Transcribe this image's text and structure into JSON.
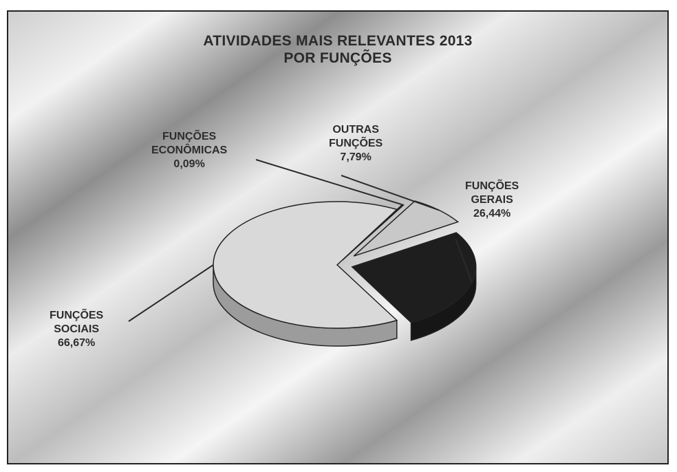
{
  "chart_data": {
    "type": "pie",
    "title": [
      "ATIVIDADES MAIS RELEVANTES 2013",
      "POR FUNÇÕES"
    ],
    "slices": [
      {
        "label": [
          "FUNÇÕES",
          "SOCIAIS"
        ],
        "value_text": "66,67%",
        "value": 66.67,
        "color": "#d9d9d9"
      },
      {
        "label": [
          "FUNÇÕES",
          "ECONÔMICAS"
        ],
        "value_text": "0,09%",
        "value": 0.09,
        "color": "#333333"
      },
      {
        "label": [
          "OUTRAS",
          "FUNÇÕES"
        ],
        "value_text": "7,79%",
        "value": 7.79,
        "color": "#c8c8c8"
      },
      {
        "label": [
          "FUNÇÕES",
          "GERAIS"
        ],
        "value_text": "26,44%",
        "value": 26.44,
        "color": "#1e1e1e"
      }
    ],
    "legend": "none",
    "grid": false,
    "style": "3d-exploded"
  }
}
